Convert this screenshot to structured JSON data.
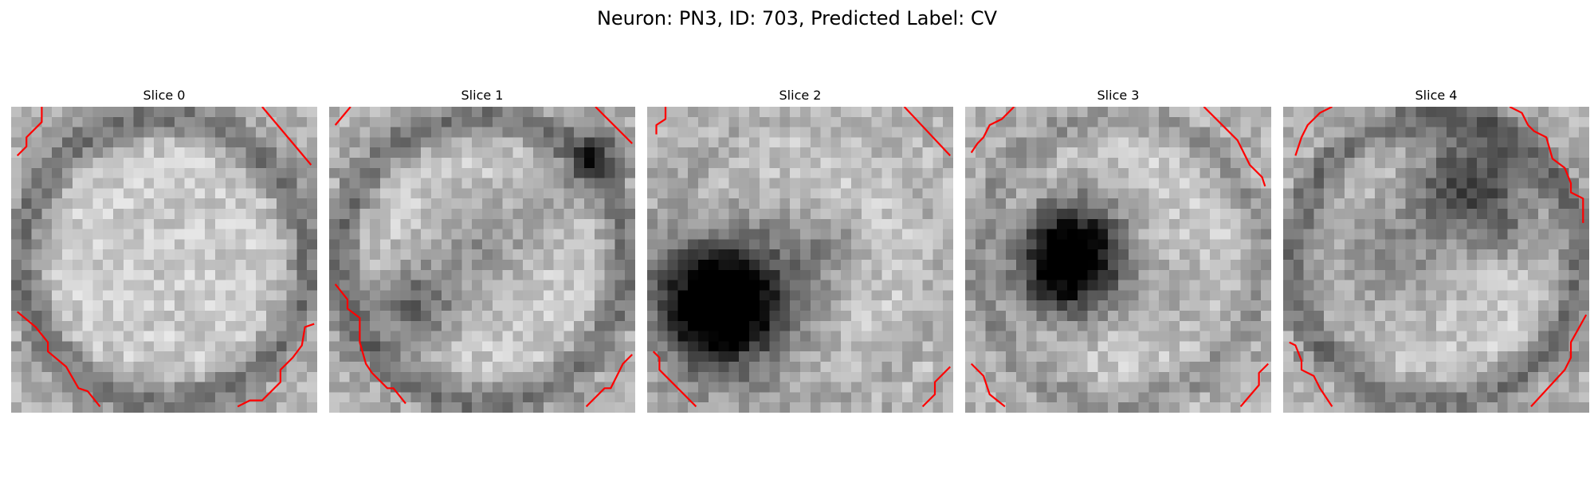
{
  "figure": {
    "suptitle": "Neuron: PN3, ID: 703, Predicted Label: CV"
  },
  "image_grid": {
    "rows": 30,
    "cols": 30,
    "colormap": "gray"
  },
  "contour_color": "#ff0000",
  "slices": [
    {
      "title": "Slice 0",
      "dark_spots": [],
      "ring": "dark",
      "contours": [
        [
          [
            0.1,
            0.0
          ],
          [
            0.1,
            0.05
          ],
          [
            0.05,
            0.1
          ],
          [
            0.05,
            0.13
          ],
          [
            0.02,
            0.16
          ]
        ],
        [
          [
            0.82,
            0.0
          ],
          [
            0.98,
            0.19
          ]
        ],
        [
          [
            0.02,
            0.67
          ],
          [
            0.08,
            0.72
          ],
          [
            0.12,
            0.77
          ],
          [
            0.12,
            0.8
          ],
          [
            0.18,
            0.85
          ],
          [
            0.22,
            0.92
          ],
          [
            0.25,
            0.93
          ],
          [
            0.29,
            0.98
          ]
        ],
        [
          [
            0.74,
            0.98
          ],
          [
            0.78,
            0.96
          ],
          [
            0.82,
            0.96
          ],
          [
            0.88,
            0.9
          ],
          [
            0.88,
            0.86
          ],
          [
            0.92,
            0.82
          ],
          [
            0.95,
            0.78
          ],
          [
            0.96,
            0.72
          ],
          [
            0.99,
            0.71
          ]
        ]
      ]
    },
    {
      "title": "Slice 1",
      "dark_spots": [
        [
          0.28,
          0.65,
          0.1,
          0.4
        ],
        [
          0.5,
          0.45,
          0.12,
          0.22
        ],
        [
          0.72,
          0.3,
          0.08,
          0.18
        ],
        [
          0.88,
          0.16,
          0.06,
          0.4
        ]
      ],
      "ring": "dark",
      "contours": [
        [
          [
            0.07,
            0.0
          ],
          [
            0.02,
            0.06
          ]
        ],
        [
          [
            0.87,
            0.0
          ],
          [
            0.99,
            0.12
          ]
        ],
        [
          [
            0.02,
            0.58
          ],
          [
            0.06,
            0.63
          ],
          [
            0.06,
            0.66
          ],
          [
            0.1,
            0.69
          ],
          [
            0.1,
            0.77
          ],
          [
            0.12,
            0.84
          ],
          [
            0.14,
            0.87
          ],
          [
            0.19,
            0.92
          ],
          [
            0.21,
            0.92
          ],
          [
            0.25,
            0.97
          ]
        ],
        [
          [
            0.84,
            0.98
          ],
          [
            0.9,
            0.92
          ],
          [
            0.92,
            0.92
          ],
          [
            0.94,
            0.88
          ],
          [
            0.96,
            0.84
          ],
          [
            0.99,
            0.81
          ]
        ]
      ]
    },
    {
      "title": "Slice 2",
      "dark_spots": [
        [
          0.24,
          0.65,
          0.13,
          0.85
        ],
        [
          0.32,
          0.6,
          0.2,
          0.35
        ],
        [
          0.6,
          0.45,
          0.08,
          0.15
        ]
      ],
      "ring": "light",
      "contours": [
        [
          [
            0.06,
            0.0
          ],
          [
            0.06,
            0.04
          ],
          [
            0.03,
            0.06
          ],
          [
            0.03,
            0.09
          ]
        ],
        [
          [
            0.84,
            0.0
          ],
          [
            0.99,
            0.16
          ]
        ],
        [
          [
            0.02,
            0.8
          ],
          [
            0.04,
            0.82
          ],
          [
            0.04,
            0.86
          ],
          [
            0.16,
            0.98
          ]
        ],
        [
          [
            0.9,
            0.98
          ],
          [
            0.94,
            0.94
          ],
          [
            0.94,
            0.9
          ],
          [
            0.99,
            0.85
          ]
        ]
      ]
    },
    {
      "title": "Slice 3",
      "dark_spots": [
        [
          0.33,
          0.53,
          0.12,
          0.75
        ],
        [
          0.37,
          0.43,
          0.12,
          0.4
        ],
        [
          0.7,
          0.6,
          0.1,
          0.12
        ]
      ],
      "ring": "medium",
      "contours": [
        [
          [
            0.16,
            0.0
          ],
          [
            0.12,
            0.04
          ],
          [
            0.08,
            0.06
          ],
          [
            0.06,
            0.1
          ],
          [
            0.04,
            0.12
          ],
          [
            0.02,
            0.15
          ]
        ],
        [
          [
            0.78,
            0.0
          ],
          [
            0.89,
            0.11
          ],
          [
            0.93,
            0.19
          ],
          [
            0.97,
            0.23
          ],
          [
            0.98,
            0.26
          ]
        ],
        [
          [
            0.02,
            0.84
          ],
          [
            0.06,
            0.88
          ],
          [
            0.08,
            0.94
          ],
          [
            0.13,
            0.98
          ]
        ],
        [
          [
            0.9,
            0.98
          ],
          [
            0.96,
            0.91
          ],
          [
            0.96,
            0.87
          ],
          [
            0.99,
            0.84
          ]
        ]
      ]
    },
    {
      "title": "Slice 4",
      "dark_spots": [
        [
          0.6,
          0.25,
          0.12,
          0.55
        ],
        [
          0.35,
          0.5,
          0.15,
          0.25
        ],
        [
          0.75,
          0.4,
          0.08,
          0.2
        ]
      ],
      "ring": "dark",
      "contours": [
        [
          [
            0.16,
            0.0
          ],
          [
            0.12,
            0.02
          ],
          [
            0.08,
            0.06
          ],
          [
            0.06,
            0.1
          ],
          [
            0.04,
            0.16
          ]
        ],
        [
          [
            0.74,
            0.0
          ],
          [
            0.78,
            0.02
          ],
          [
            0.8,
            0.06
          ],
          [
            0.82,
            0.08
          ],
          [
            0.86,
            0.1
          ],
          [
            0.88,
            0.17
          ],
          [
            0.92,
            0.2
          ],
          [
            0.94,
            0.25
          ],
          [
            0.94,
            0.28
          ],
          [
            0.98,
            0.3
          ],
          [
            0.98,
            0.38
          ]
        ],
        [
          [
            0.02,
            0.77
          ],
          [
            0.04,
            0.78
          ],
          [
            0.06,
            0.83
          ],
          [
            0.06,
            0.86
          ],
          [
            0.1,
            0.88
          ],
          [
            0.12,
            0.92
          ],
          [
            0.16,
            0.98
          ]
        ],
        [
          [
            0.81,
            0.98
          ],
          [
            0.92,
            0.86
          ],
          [
            0.94,
            0.82
          ],
          [
            0.94,
            0.77
          ],
          [
            0.99,
            0.68
          ]
        ]
      ]
    }
  ]
}
